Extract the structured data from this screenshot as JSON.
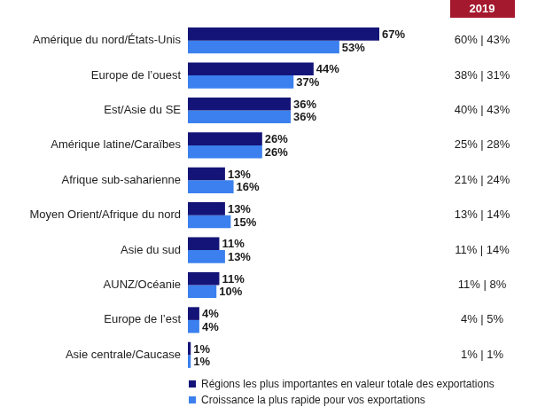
{
  "chart_data": {
    "type": "bar",
    "orientation": "horizontal",
    "categories": [
      "Amérique du nord/États-Unis",
      "Europe de l’ouest",
      "Est/Asie du SE",
      "Amérique latine/Caraïbes",
      "Afrique sub-saharienne",
      "Moyen Orient/Afrique du nord",
      "Asie du sud",
      "AUNZ/Océanie",
      "Europe de l’est",
      "Asie centrale/Caucase"
    ],
    "series": [
      {
        "name": "Régions les plus importantes en valeur totale des exportations",
        "color": "#141478",
        "values": [
          67,
          44,
          36,
          26,
          13,
          13,
          11,
          11,
          4,
          1
        ],
        "value_labels": [
          "67%",
          "44%",
          "36%",
          "26%",
          "13%",
          "13%",
          "11%",
          "11%",
          "4%",
          "1%"
        ]
      },
      {
        "name": "Croissance la plus rapide pour vos exportations",
        "color": "#3b80ee",
        "values": [
          53,
          37,
          36,
          26,
          16,
          15,
          13,
          10,
          4,
          1
        ],
        "value_labels": [
          "53%",
          "37%",
          "36%",
          "26%",
          "16%",
          "15%",
          "13%",
          "10%",
          "4%",
          "1%"
        ]
      }
    ],
    "data_labels": true,
    "tick_labels": "y",
    "grid": false,
    "legend": "bottom",
    "annotations": {
      "header": "2019",
      "labels": [
        "60% | 43%",
        "38% | 31%",
        "40% | 43%",
        "25% | 28%",
        "21% | 24%",
        "13% | 14%",
        "11% | 14%",
        "11% | 8%",
        "4% | 5%",
        "1% | 1%"
      ]
    }
  }
}
